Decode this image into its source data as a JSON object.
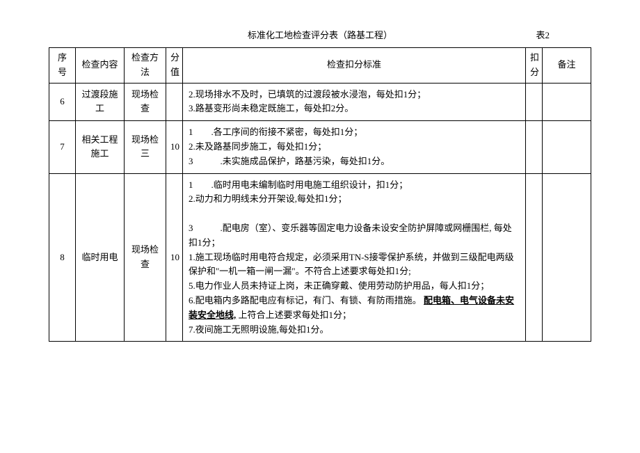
{
  "title": "标准化工地检查评分表（路基工程）",
  "table_label": "表2",
  "headers": {
    "seq": "序号",
    "content": "检查内容",
    "method": "检查方法",
    "score": "分值",
    "standard": "检查扣分标准",
    "deduct": "扣分",
    "remark": "备注"
  },
  "rows": [
    {
      "seq": "6",
      "content": "过渡段施工",
      "method": "现场检查",
      "score": "",
      "standard_lines": [
        "2.现场排水不及时，已填筑的过渡段被水浸泡，每处扣1分；",
        "3.路基变形尚未稳定既施工，每处扣2分。"
      ],
      "deduct": "",
      "remark": ""
    },
    {
      "seq": "7",
      "content": "相关工程施工",
      "method": "现场检三",
      "score": "10",
      "standard_lines": [
        "1　　.各工序间的衔接不紧密，每处扣1分；",
        "2.未及路基同步施工，每处扣1分；",
        "3　　　.未实施成品保护，路基污染，每处扣1分。"
      ],
      "deduct": "",
      "remark": ""
    },
    {
      "seq": "8",
      "content": "临时用电",
      "method": "现场检查",
      "score": "10",
      "standard_lines": [
        "1　　.临时用电未编制临时用电施工组织设计，扣1分；",
        "2.动力和力明线未分开架设,每处扣1分；",
        "",
        "3　　　.配电房（室）、变乐器等固定电力设备未设安全防护屏障或网栅围栏, 每处扣1分；",
        "1.施工现场临时用电符合规定，必须采用TN-S接零保护系统，并做到三级配电两级保护和\"一机一箱一闸一漏\"。不符合上述要求每处扣1分;",
        "5.电力作业人员未持证上岗，未正确穿戴、使用劳动防护用品，每人扣1分；",
        "6.配电箱内多路配电应有标记，有门、有锁、有防雨措施。",
        "7.夜间施工无照明设施,每处扣1分。"
      ],
      "underline_bold_suffix": "配电箱、电气设备未安装安全地线,",
      "underline_bold_tail": " 上符合上述要求每处扣1分；",
      "deduct": "",
      "remark": ""
    }
  ]
}
